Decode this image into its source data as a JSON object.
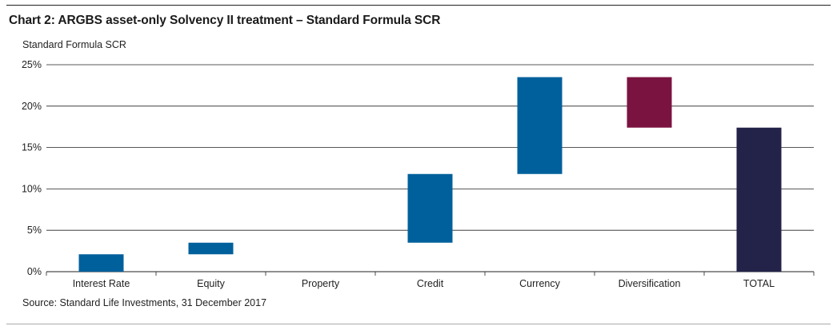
{
  "title": "Chart 2: ARGBS asset-only Solvency II treatment – Standard Formula SCR",
  "source": "Source: Standard Life Investments, 31 December 2017",
  "colors": {
    "increase": "#00609c",
    "decrease": "#7b1340",
    "total": "#23234a",
    "grid": "#222222"
  },
  "chart_data": {
    "type": "bar",
    "subtype": "waterfall",
    "ylabel": "Standard Formula SCR",
    "ylim": [
      0,
      25
    ],
    "yticks": [
      "0%",
      "5%",
      "10%",
      "15%",
      "20%",
      "25%"
    ],
    "yticks_values": [
      0,
      5,
      10,
      15,
      20,
      25
    ],
    "grid": true,
    "categories": [
      "Interest Rate",
      "Equity",
      "Property",
      "Credit",
      "Currency",
      "Diversification",
      "TOTAL"
    ],
    "bars": [
      {
        "category": "Interest Rate",
        "start": 0,
        "end": 2.1,
        "kind": "increase"
      },
      {
        "category": "Equity",
        "start": 2.1,
        "end": 3.5,
        "kind": "increase"
      },
      {
        "category": "Property",
        "start": 3.5,
        "end": 3.5,
        "kind": "increase"
      },
      {
        "category": "Credit",
        "start": 3.5,
        "end": 11.8,
        "kind": "increase"
      },
      {
        "category": "Currency",
        "start": 11.8,
        "end": 23.5,
        "kind": "increase"
      },
      {
        "category": "Diversification",
        "start": 23.5,
        "end": 17.4,
        "kind": "decrease"
      },
      {
        "category": "TOTAL",
        "start": 0,
        "end": 17.4,
        "kind": "total"
      }
    ]
  }
}
